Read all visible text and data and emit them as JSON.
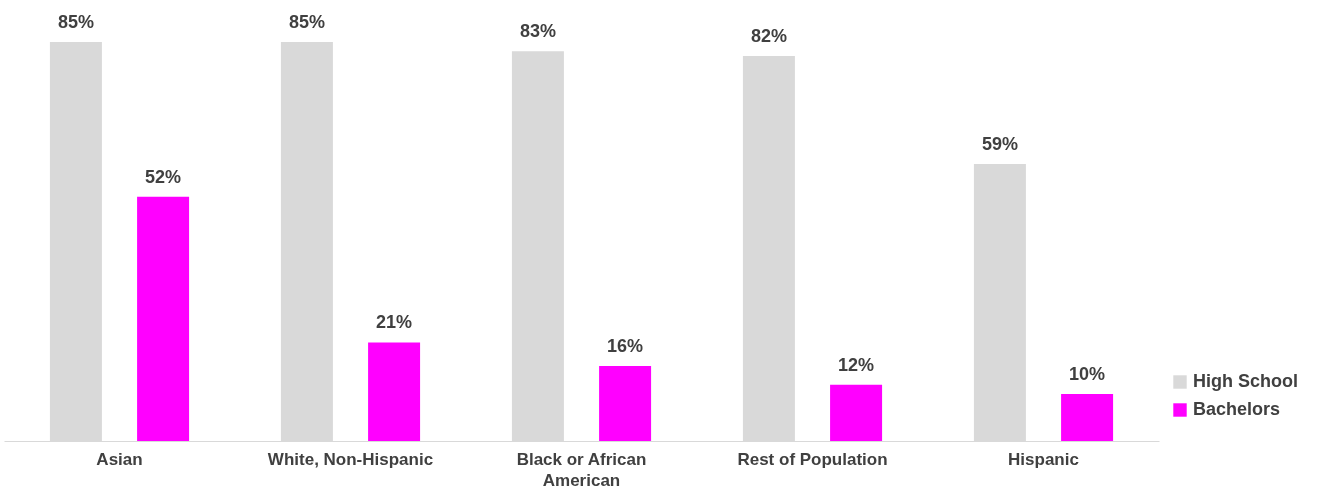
{
  "chart_data": {
    "type": "bar",
    "categories": [
      "Asian",
      "White, Non-Hispanic",
      "Black or African American",
      "Rest of Population",
      "Hispanic"
    ],
    "series": [
      {
        "name": "High School",
        "color": "#d9d9d9",
        "values": [
          85,
          85,
          83,
          82,
          59
        ],
        "value_labels": [
          "85%",
          "85%",
          "83%",
          "82%",
          "59%"
        ]
      },
      {
        "name": "Bachelors",
        "color": "#ff00ff",
        "values": [
          52,
          21,
          16,
          12,
          10
        ],
        "value_labels": [
          "52%",
          "21%",
          "16%",
          "12%",
          "10%"
        ]
      }
    ],
    "legend": "bottom right",
    "grid": false
  }
}
